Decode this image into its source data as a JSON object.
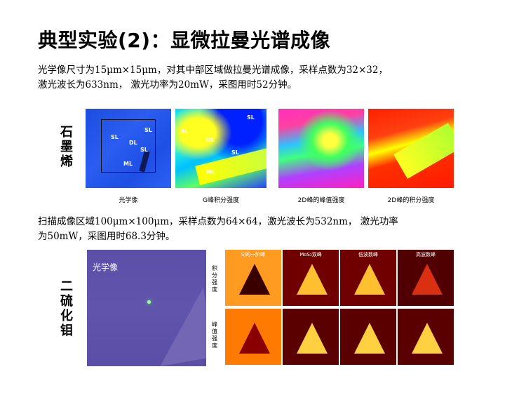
{
  "title": "典型实验(2)：显微拉曼光谱成像",
  "para1": [
    "光学像尺寸为15μm×15μm，对其中部区域做拉曼光谱成像，采样点数为32×32，",
    "激光波长为633nm， 激光功率为20mW，采图用时52分钟。"
  ],
  "para2": [
    "扫描成像区域100μm×100μm，采样点数为64×64，激光波长为532nm， 激光功率",
    "为50mW，采图用时68.3分钟。"
  ],
  "graphene": {
    "side_label": [
      "石",
      "墨",
      "烯"
    ],
    "optical_labels": [
      "SL",
      "SL",
      "DL",
      "SL",
      "ML"
    ],
    "g_labels": [
      "SL",
      "SL",
      "DL",
      "SL",
      "ML"
    ],
    "captions": [
      "光学像",
      "G峰积分强度",
      "2D峰的峰值强度",
      "2D峰的积分强度"
    ]
  },
  "mos2": {
    "side_label": [
      "二",
      "硫",
      "化",
      "钼"
    ],
    "optical_label": "光学像",
    "row_labels": [
      [
        "积",
        "分",
        "强",
        "度"
      ],
      [
        "峰",
        "值",
        "强",
        "度"
      ]
    ],
    "panel_titles": [
      "Si的一阶峰",
      "MoS₂双峰",
      "低波数峰",
      "高波数峰"
    ]
  }
}
